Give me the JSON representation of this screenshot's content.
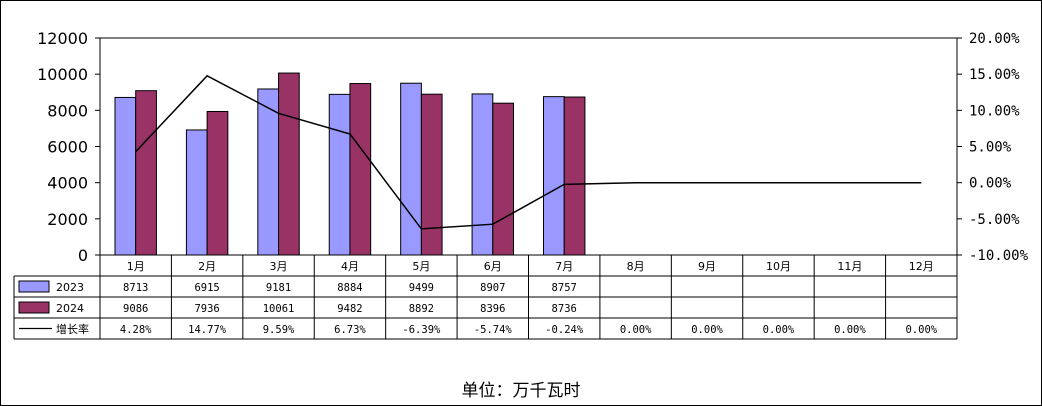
{
  "chart_data": {
    "type": "bar",
    "categories": [
      "1月",
      "2月",
      "3月",
      "4月",
      "5月",
      "6月",
      "7月",
      "8月",
      "9月",
      "10月",
      "11月",
      "12月"
    ],
    "series": [
      {
        "name": "2023",
        "kind": "bar",
        "color": "#9999ff",
        "values": [
          8713,
          6915,
          9181,
          8884,
          9499,
          8907,
          8757,
          null,
          null,
          null,
          null,
          null
        ],
        "labels": [
          "8713",
          "6915",
          "9181",
          "8884",
          "9499",
          "8907",
          "8757",
          "",
          "",
          "",
          "",
          ""
        ]
      },
      {
        "name": "2024",
        "kind": "bar",
        "color": "#993366",
        "values": [
          9086,
          7936,
          10061,
          9482,
          8892,
          8396,
          8736,
          null,
          null,
          null,
          null,
          null
        ],
        "labels": [
          "9086",
          "7936",
          "10061",
          "9482",
          "8892",
          "8396",
          "8736",
          "",
          "",
          "",
          "",
          ""
        ]
      },
      {
        "name": "增长率",
        "kind": "line",
        "axis": "right",
        "color": "#000000",
        "values": [
          4.28,
          14.77,
          9.59,
          6.73,
          -6.39,
          -5.74,
          -0.24,
          0.0,
          0.0,
          0.0,
          0.0,
          0.0
        ],
        "labels": [
          "4.28%",
          "14.77%",
          "9.59%",
          "6.73%",
          "-6.39%",
          "-5.74%",
          "-0.24%",
          "0.00%",
          "0.00%",
          "0.00%",
          "0.00%",
          "0.00%"
        ]
      }
    ],
    "y_left": {
      "ylim": [
        0,
        12000
      ],
      "ticks": [
        "0",
        "2000",
        "4000",
        "6000",
        "8000",
        "10000",
        "12000"
      ]
    },
    "y_right": {
      "ylim": [
        -10,
        20
      ],
      "ticks": [
        "-10.00%",
        "-5.00%",
        "0.00%",
        "5.00%",
        "10.00%",
        "15.00%",
        "20.00%"
      ]
    },
    "data_table": true,
    "grid": false,
    "unit_label": "单位：万千瓦时"
  }
}
